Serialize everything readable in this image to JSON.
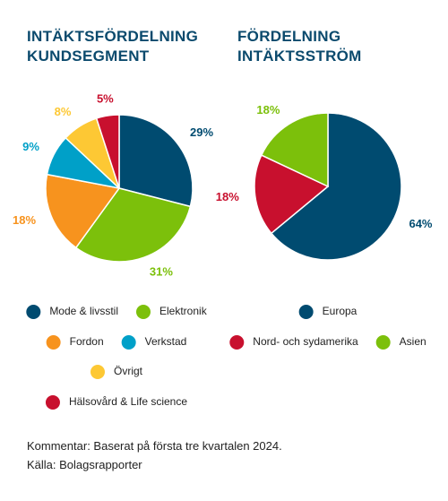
{
  "chart_data": [
    {
      "type": "pie",
      "title": "INTÄKTSFÖRDELNING KUNDSEGMENT",
      "categories": [
        "Mode & livsstil",
        "Elektronik",
        "Fordon",
        "Verkstad",
        "Övrigt",
        "Hälsovård & Life science"
      ],
      "values": [
        29,
        31,
        18,
        9,
        8,
        5
      ],
      "value_labels": [
        "29%",
        "31%",
        "18%",
        "9%",
        "8%",
        "5%"
      ],
      "colors": [
        "#004b70",
        "#7cc00b",
        "#f7931e",
        "#00a0c8",
        "#fdc834",
        "#c8102e"
      ]
    },
    {
      "type": "pie",
      "title": "FÖRDELNING INTÄKTSSTRÖM",
      "categories": [
        "Europa",
        "Nord- och sydamerika",
        "Asien"
      ],
      "values": [
        64,
        18,
        18
      ],
      "value_labels": [
        "64%",
        "18%",
        "18%"
      ],
      "colors": [
        "#004b70",
        "#c8102e",
        "#7cc00b"
      ]
    }
  ],
  "footer": {
    "comment": "Kommentar: Baserat på första tre kvartalen 2024.",
    "source": "Källa: Bolagsrapporter"
  }
}
